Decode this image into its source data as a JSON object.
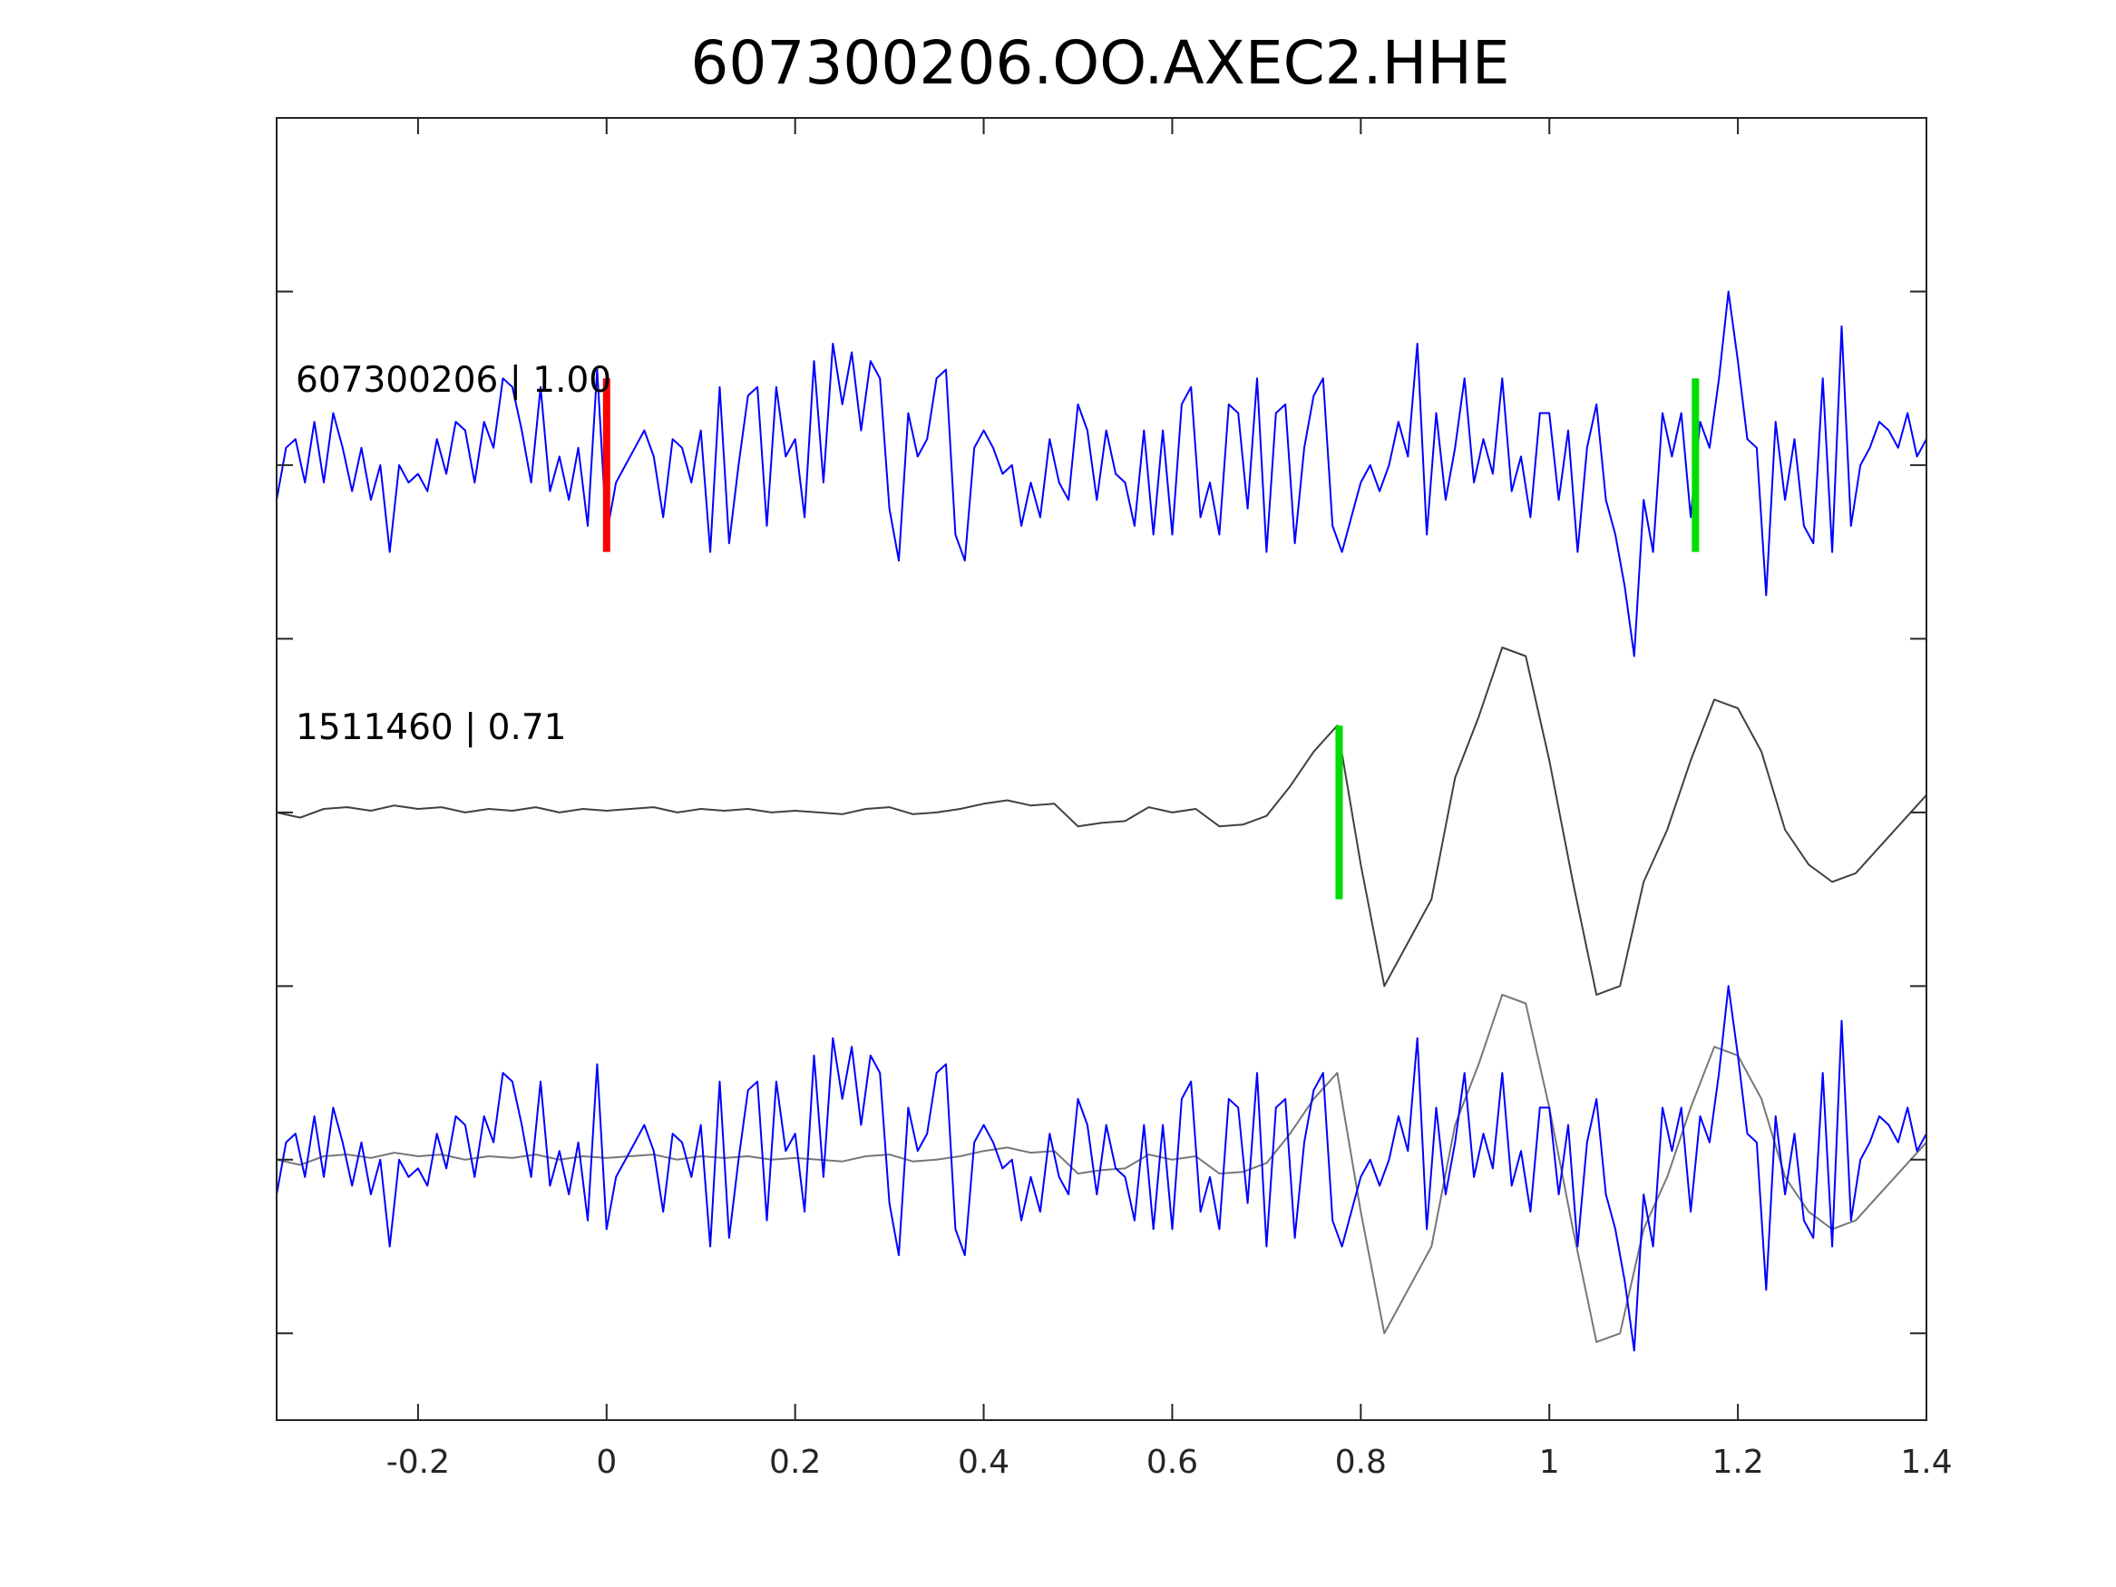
{
  "chart_data": {
    "type": "line",
    "title": "607300206.OO.AXEC2.HHE",
    "xlabel": "",
    "ylabel": "",
    "xlim": [
      -0.35,
      1.4
    ],
    "ylim": [
      0,
      7.5
    ],
    "xticks": [
      -0.2,
      0,
      0.2,
      0.4,
      0.6,
      0.8,
      1,
      1.2,
      1.4
    ],
    "xtick_labels": [
      "-0.2",
      "0",
      "0.2",
      "0.4",
      "0.6",
      "0.8",
      "1",
      "1.2",
      "1.4"
    ],
    "yticks": [
      0.5,
      1.5,
      2.5,
      3.5,
      4.5,
      5.5,
      6.5
    ],
    "grid": false,
    "traces": [
      {
        "name": "607300206",
        "label": "607300206 | 1.00",
        "baseline": 5.5
      },
      {
        "name": "1511460",
        "label": "1511460 | 0.71",
        "baseline": 3.5
      },
      {
        "name": "overlay",
        "label": "",
        "baseline": 1.5
      }
    ],
    "series": [
      {
        "name": "607300206",
        "color": "#0000ff",
        "x_start": -0.35,
        "x_step": 0.01,
        "values": [
          -0.2,
          0.1,
          0.15,
          -0.1,
          0.25,
          -0.1,
          0.3,
          0.1,
          -0.15,
          0.1,
          -0.2,
          0,
          -0.5,
          0,
          -0.1,
          -0.05,
          -0.15,
          0.15,
          -0.05,
          0.25,
          0.2,
          -0.1,
          0.25,
          0.1,
          0.5,
          0.45,
          0.2,
          -0.1,
          0.45,
          -0.15,
          0.05,
          -0.2,
          0.1,
          -0.35,
          0.55,
          -0.4,
          -0.1,
          0,
          0.1,
          0.2,
          0.05,
          -0.3,
          0.15,
          0.1,
          -0.1,
          0.2,
          -0.5,
          0.45,
          -0.45,
          0.0,
          0.4,
          0.45,
          -0.35,
          0.45,
          0.05,
          0.15,
          -0.3,
          0.6,
          -0.1,
          0.7,
          0.35,
          0.65,
          0.2,
          0.6,
          0.5,
          -0.25,
          -0.55,
          0.3,
          0.05,
          0.15,
          0.5,
          0.55,
          -0.4,
          -0.55,
          0.1,
          0.2,
          0.1,
          -0.05,
          0.0,
          -0.35,
          -0.1,
          -0.3,
          0.15,
          -0.1,
          -0.2,
          0.35,
          0.2,
          -0.2,
          0.2,
          -0.05,
          -0.1,
          -0.35,
          0.2,
          -0.4,
          0.2,
          -0.4,
          0.35,
          0.45,
          -0.3,
          -0.1,
          -0.4,
          0.35,
          0.3,
          -0.25,
          0.5,
          -0.5,
          0.3,
          0.35,
          -0.45,
          0.1,
          0.4,
          0.5,
          -0.35,
          -0.5,
          -0.3,
          -0.1,
          0.0,
          -0.15,
          0.0,
          0.25,
          0.05,
          0.7,
          -0.4,
          0.3,
          -0.2,
          0.1,
          0.5,
          -0.1,
          0.15,
          -0.05,
          0.5,
          -0.15,
          0.05,
          -0.3,
          0.3,
          0.3,
          -0.2,
          0.2,
          -0.5,
          0.1,
          0.35,
          -0.2,
          -0.4,
          -0.7,
          -1.1,
          -0.2,
          -0.5,
          0.3,
          0.05,
          0.3,
          -0.3,
          0.25,
          0.1,
          0.5,
          1.0,
          0.6,
          0.15,
          0.1,
          -0.75,
          0.25,
          -0.2,
          0.15,
          -0.35,
          -0.45,
          0.5,
          -0.5,
          0.8,
          -0.35,
          0.0,
          0.1,
          0.25,
          0.2,
          0.1,
          0.3,
          0.05,
          0.15
        ]
      },
      {
        "name": "1511460",
        "color": "#404040",
        "overlay_color": "#777777",
        "x_start": -0.35,
        "x_step": 0.025,
        "values": [
          0,
          -0.03,
          0.02,
          0.03,
          0.01,
          0.04,
          0.02,
          0.03,
          0.0,
          0.02,
          0.01,
          0.03,
          0.0,
          0.02,
          0.01,
          0.02,
          0.03,
          0.0,
          0.02,
          0.01,
          0.02,
          0.0,
          0.01,
          0.0,
          -0.01,
          0.02,
          0.03,
          -0.01,
          0.0,
          0.02,
          0.05,
          0.07,
          0.04,
          0.05,
          -0.08,
          -0.06,
          -0.05,
          0.03,
          0.0,
          0.02,
          -0.08,
          -0.07,
          -0.02,
          0.15,
          0.35,
          0.5,
          -0.3,
          -1.0,
          -0.75,
          -0.5,
          0.2,
          0.55,
          0.95,
          0.9,
          0.3,
          -0.4,
          -1.05,
          -1.0,
          -0.4,
          -0.1,
          0.3,
          0.65,
          0.6,
          0.35,
          -0.1,
          -0.3,
          -0.4,
          -0.35,
          -0.2,
          -0.05,
          0.1
        ]
      }
    ],
    "picks": [
      {
        "trace": "607300206",
        "x": 0.0,
        "color": "#ff0000"
      },
      {
        "trace": "607300206",
        "x": 1.155,
        "color": "#00dd00"
      },
      {
        "trace": "1511460",
        "x": 0.777,
        "color": "#00dd00"
      }
    ]
  }
}
